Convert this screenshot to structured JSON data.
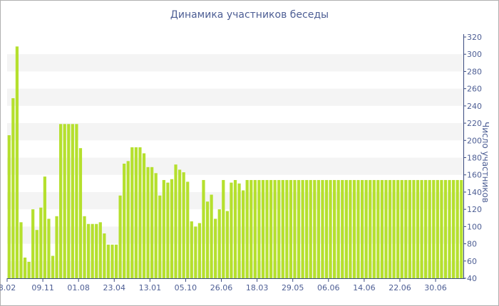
{
  "chart_data": {
    "type": "bar",
    "title": "Динамика участников беседы",
    "xlabel": "",
    "ylabel": "Число участников",
    "ylim": [
      40,
      320
    ],
    "yticks": [
      40,
      60,
      80,
      100,
      120,
      140,
      160,
      180,
      200,
      220,
      240,
      260,
      280,
      300,
      320
    ],
    "y_axis_side": "right",
    "grid": "horizontal bands",
    "bar_color": "#b5e02e",
    "axis_color": "#3a4a80",
    "band_color": "#f4f4f4",
    "x_tick_labels": [
      "8.02",
      "09.11",
      "01.08",
      "23.04",
      "13.01",
      "05.10",
      "26.06",
      "18.03",
      "29.05",
      "06.06",
      "14.06",
      "22.06",
      "30.06"
    ],
    "x_tick_positions": [
      0,
      9,
      18,
      27,
      36,
      45,
      54,
      63,
      72,
      81,
      90,
      99,
      108
    ],
    "values": [
      206,
      249,
      309,
      105,
      64,
      59,
      120,
      96,
      122,
      158,
      109,
      66,
      112,
      219,
      219,
      219,
      219,
      219,
      191,
      112,
      103,
      103,
      103,
      105,
      92,
      79,
      79,
      79,
      136,
      173,
      176,
      192,
      192,
      192,
      185,
      169,
      169,
      162,
      136,
      154,
      151,
      155,
      172,
      166,
      163,
      152,
      106,
      100,
      104,
      154,
      129,
      137,
      109,
      120,
      154,
      118,
      151,
      154,
      150,
      142,
      154,
      154,
      154,
      154,
      154,
      154,
      154,
      154,
      154,
      154,
      154,
      154,
      154,
      154,
      154,
      154,
      154,
      154,
      154,
      154,
      154,
      154,
      154,
      154,
      154,
      154,
      154,
      154,
      154,
      154,
      154,
      154,
      154,
      154,
      154,
      154,
      154,
      154,
      154,
      154,
      154,
      154,
      154,
      154,
      154,
      154,
      154,
      154,
      154,
      154,
      154,
      154,
      154,
      154,
      154
    ]
  }
}
